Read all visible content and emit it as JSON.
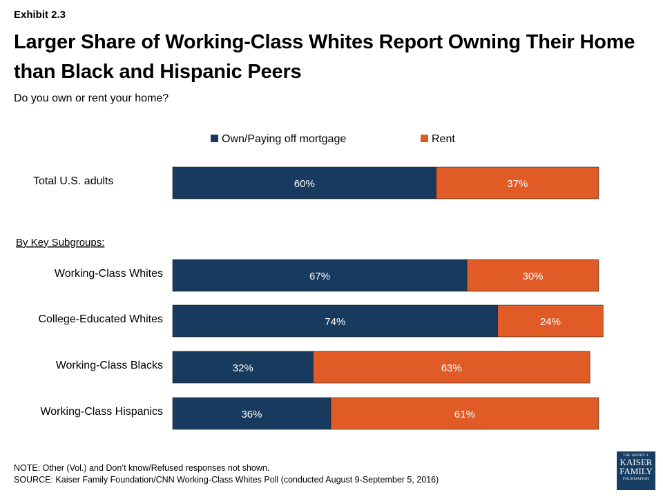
{
  "header": {
    "exhibit": "Exhibit 2.3",
    "title": "Larger Share of Working-Class Whites Report Owning Their Home than Black and Hispanic Peers",
    "subtitle": "Do you own or rent your home?"
  },
  "chart_data": {
    "type": "bar",
    "orientation": "horizontal",
    "stacked": true,
    "legend_position": "top",
    "grid": false,
    "series": [
      {
        "name": "Own/Paying off mortgage",
        "color": "#173a5e",
        "values": [
          60,
          67,
          74,
          32,
          36
        ]
      },
      {
        "name": "Rent",
        "color": "#e05b26",
        "values": [
          37,
          30,
          24,
          63,
          61
        ]
      }
    ],
    "categories": [
      "Total U.S. adults",
      "Working-Class Whites",
      "College-Educated Whites",
      "Working-Class Blacks",
      "Working-Class Hispanics"
    ],
    "group_label": "By Key Subgroups:",
    "xlim": [
      0,
      100
    ]
  },
  "footer": {
    "note": "NOTE: Other (Vol.) and Don’t know/Refused responses not shown.",
    "source": "SOURCE: Kaiser Family Foundation/CNN Working-Class Whites Poll (conducted August 9-September 5, 2016)",
    "logo_lines": [
      "THE HENRY J.",
      "KAISER",
      "FAMILY",
      "FOUNDATION"
    ]
  }
}
